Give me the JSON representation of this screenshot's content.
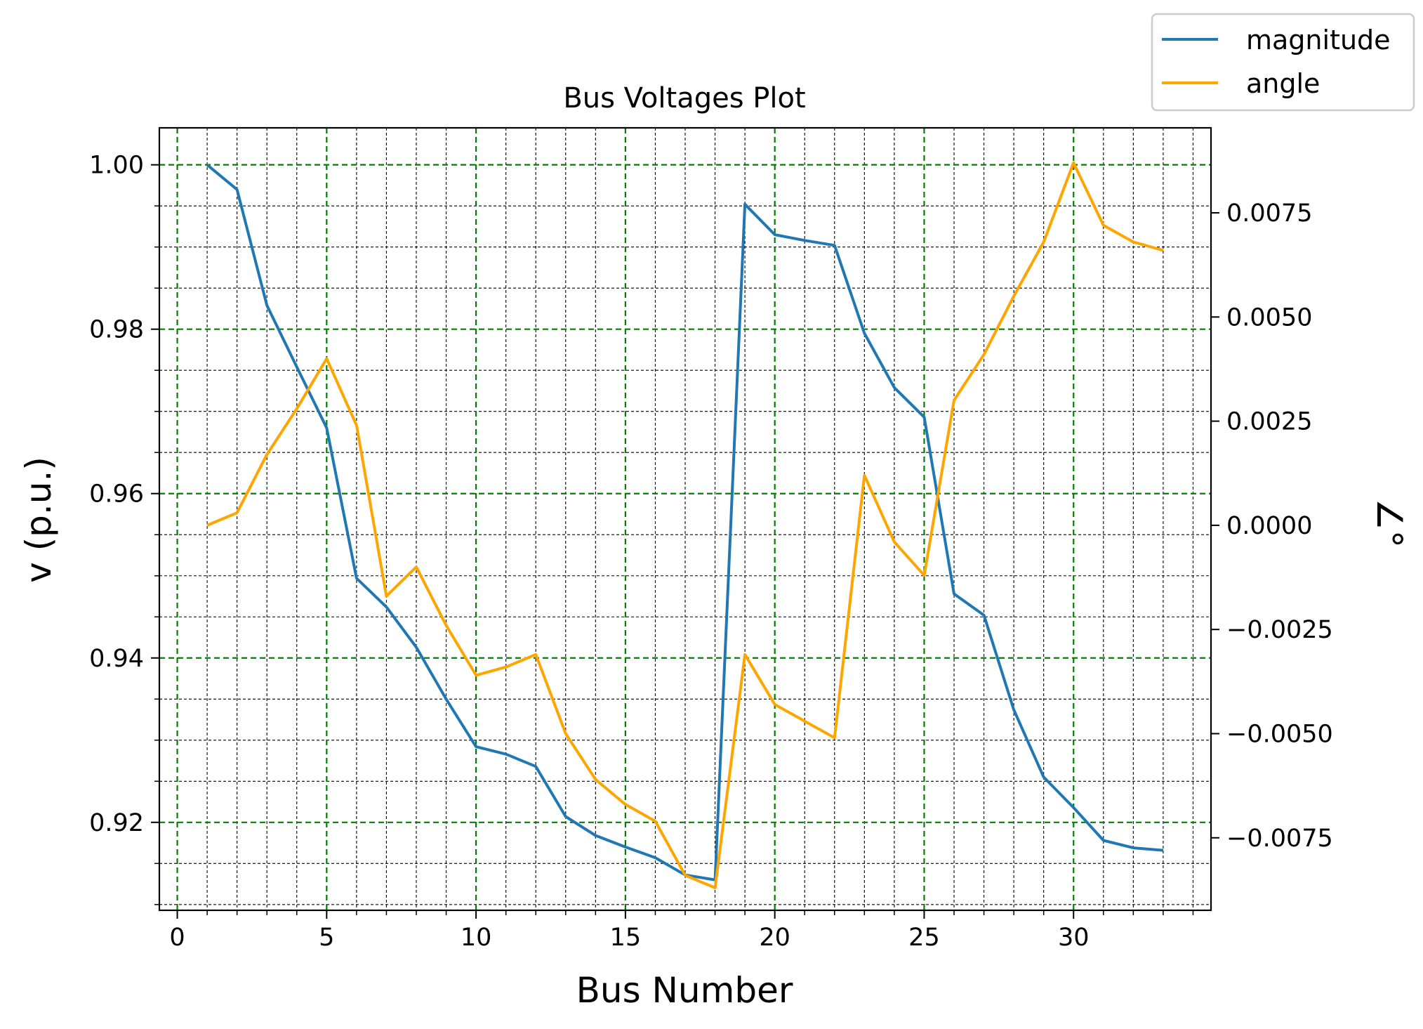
{
  "chart_data": {
    "type": "line",
    "title": "Bus Voltages Plot",
    "xlabel": "Bus Number",
    "ylabel": "v (p.u.)",
    "y2label": "∠°",
    "xlim": [
      -0.6,
      34.6
    ],
    "ylim": [
      0.9093,
      1.0045
    ],
    "y2lim": [
      -0.00924,
      0.00954
    ],
    "x_major_ticks": [
      0,
      5,
      10,
      15,
      20,
      25,
      30
    ],
    "x_tick_labels": [
      "0",
      "5",
      "10",
      "15",
      "20",
      "25",
      "30"
    ],
    "y_major_ticks": [
      0.92,
      0.94,
      0.96,
      0.98,
      1.0
    ],
    "y_tick_labels": [
      "0.92",
      "0.94",
      "0.96",
      "0.98",
      "1.00"
    ],
    "y2_major_ticks": [
      -0.0075,
      -0.005,
      -0.0025,
      0.0,
      0.0025,
      0.005,
      0.0075
    ],
    "y2_tick_labels": [
      "−0.0075",
      "−0.0050",
      "−0.0025",
      "0.0000",
      "0.0025",
      "0.0050",
      "0.0075"
    ],
    "grid": {
      "major": true,
      "major_color": "#008000",
      "minor": true,
      "minor_color": "#000000"
    },
    "legend": {
      "placement": "top-right, outside plot"
    },
    "x": [
      1,
      2,
      3,
      4,
      5,
      6,
      7,
      8,
      9,
      10,
      11,
      12,
      13,
      14,
      15,
      16,
      17,
      18,
      19,
      20,
      21,
      22,
      23,
      24,
      25,
      26,
      27,
      28,
      29,
      30,
      31,
      32,
      33
    ],
    "series": [
      {
        "name": "magnitude",
        "color": "#1f77b4",
        "axis": "left",
        "values": [
          1.0,
          0.997,
          0.9829,
          0.9754,
          0.968,
          0.9497,
          0.9462,
          0.9413,
          0.935,
          0.9292,
          0.9283,
          0.9268,
          0.9207,
          0.9184,
          0.917,
          0.9157,
          0.9136,
          0.913,
          0.9952,
          0.9915,
          0.9908,
          0.9902,
          0.9795,
          0.9729,
          0.9693,
          0.9478,
          0.9452,
          0.9337,
          0.9255,
          0.9218,
          0.9178,
          0.9169,
          0.9166
        ]
      },
      {
        "name": "angle",
        "color": "#ffa500",
        "axis": "right",
        "values": [
          0.0,
          0.0003,
          0.0017,
          0.0028,
          0.004,
          0.0024,
          -0.0017,
          -0.001,
          -0.0024,
          -0.0036,
          -0.0034,
          -0.0031,
          -0.005,
          -0.0061,
          -0.0067,
          -0.0071,
          -0.0084,
          -0.0087,
          -0.0031,
          -0.0043,
          -0.0047,
          -0.0051,
          0.0012,
          -0.0004,
          -0.0012,
          0.003,
          0.0041,
          0.0055,
          0.0068,
          0.0087,
          0.0072,
          0.0068,
          0.0066
        ]
      }
    ]
  }
}
